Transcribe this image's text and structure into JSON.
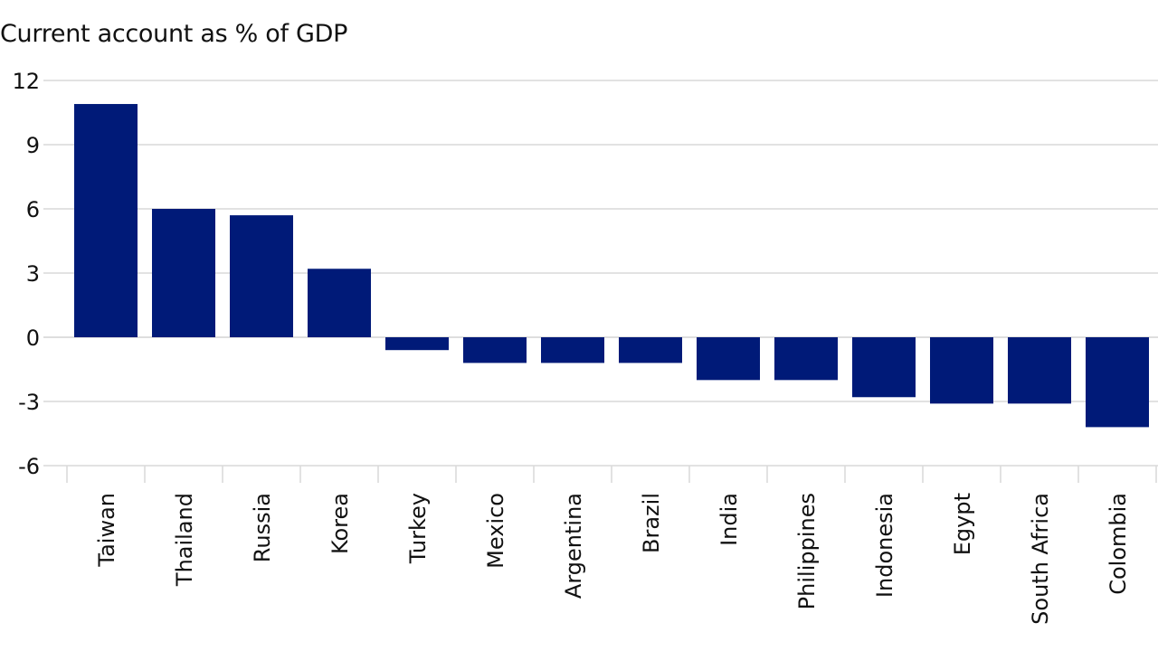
{
  "chart_data": {
    "type": "bar",
    "title": "Current account as % of GDP",
    "xlabel": "",
    "ylabel": "",
    "ylim": [
      -6,
      12
    ],
    "yticks": [
      12,
      9,
      6,
      3,
      0,
      -3,
      -6
    ],
    "grid": true,
    "categories": [
      "Taiwan",
      "Thailand",
      "Russia",
      "Korea",
      "Turkey",
      "Mexico",
      "Argentina",
      "Brazil",
      "India",
      "Philippines",
      "Indonesia",
      "Egypt",
      "South Africa",
      "Colombia"
    ],
    "values": [
      10.9,
      6.0,
      5.7,
      3.2,
      -0.6,
      -1.2,
      -1.2,
      -1.2,
      -2.0,
      -2.0,
      -2.8,
      -3.1,
      -3.1,
      -4.2
    ],
    "bar_color": "#001a78",
    "grid_color": "#d9d9d9"
  }
}
